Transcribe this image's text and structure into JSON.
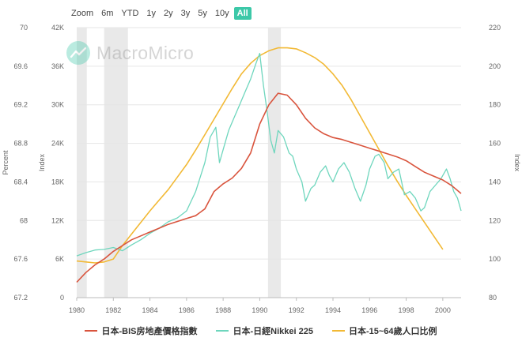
{
  "toolbar": {
    "zoom_label": "Zoom",
    "buttons": [
      "6m",
      "YTD",
      "1y",
      "2y",
      "3y",
      "5y",
      "10y",
      "All"
    ],
    "active": "All"
  },
  "watermark": {
    "text": "MacroMicro",
    "logo_color": "#3cc8a8"
  },
  "chart_data": {
    "type": "line",
    "x_range": [
      1980,
      2001
    ],
    "x_ticks": [
      "1980",
      "1982",
      "1984",
      "1986",
      "1988",
      "1990",
      "1992",
      "1994",
      "1996",
      "1998",
      "2000"
    ],
    "axes": {
      "left_outer": {
        "label": "Percent",
        "range": [
          67.2,
          70
        ],
        "ticks": [
          "67.2",
          "67.6",
          "68",
          "68.4",
          "68.8",
          "69.2",
          "69.6",
          "70"
        ]
      },
      "left_inner": {
        "label": "Index",
        "range": [
          0,
          42000
        ],
        "ticks": [
          "0",
          "6K",
          "12K",
          "18K",
          "24K",
          "30K",
          "36K",
          "42K"
        ]
      },
      "right": {
        "label": "Index",
        "range": [
          80,
          220
        ],
        "ticks": [
          "80",
          "100",
          "120",
          "140",
          "160",
          "180",
          "200",
          "220"
        ]
      }
    },
    "recession_bands": [
      [
        1980.0,
        1980.55
      ],
      [
        1981.5,
        1982.8
      ],
      [
        1990.45,
        1991.15
      ]
    ],
    "grid": "horizontal",
    "legend_position": "bottom",
    "series": [
      {
        "name": "日本-BIS房地產價格指數",
        "axis": "right",
        "color": "#d9543d",
        "points": [
          [
            1980.0,
            88
          ],
          [
            1980.5,
            93
          ],
          [
            1981.0,
            97
          ],
          [
            1981.5,
            100
          ],
          [
            1982.0,
            104
          ],
          [
            1982.5,
            107
          ],
          [
            1983.0,
            110
          ],
          [
            1983.5,
            112
          ],
          [
            1984.0,
            114
          ],
          [
            1984.5,
            116
          ],
          [
            1985.0,
            118
          ],
          [
            1985.5,
            119.5
          ],
          [
            1986.0,
            121
          ],
          [
            1986.5,
            122.5
          ],
          [
            1987.0,
            126
          ],
          [
            1987.5,
            135
          ],
          [
            1988.0,
            139
          ],
          [
            1988.5,
            142
          ],
          [
            1989.0,
            147
          ],
          [
            1989.5,
            155
          ],
          [
            1990.0,
            170
          ],
          [
            1990.5,
            180
          ],
          [
            1991.0,
            186
          ],
          [
            1991.5,
            185
          ],
          [
            1992.0,
            180
          ],
          [
            1992.5,
            173
          ],
          [
            1993.0,
            168
          ],
          [
            1993.5,
            165
          ],
          [
            1994.0,
            163
          ],
          [
            1994.5,
            162
          ],
          [
            1995.0,
            160.5
          ],
          [
            1995.5,
            159
          ],
          [
            1996.0,
            157.5
          ],
          [
            1996.5,
            156
          ],
          [
            1997.0,
            154.5
          ],
          [
            1997.5,
            153
          ],
          [
            1998.0,
            151
          ],
          [
            1998.5,
            148
          ],
          [
            1999.0,
            145
          ],
          [
            1999.5,
            143
          ],
          [
            2000.0,
            141
          ],
          [
            2000.5,
            138
          ],
          [
            2001.0,
            134
          ]
        ]
      },
      {
        "name": "日本-日經Nikkei 225",
        "axis": "left_inner",
        "color": "#6ed6bd",
        "points": [
          [
            1980.0,
            6500
          ],
          [
            1980.5,
            7000
          ],
          [
            1981.0,
            7400
          ],
          [
            1981.5,
            7500
          ],
          [
            1982.0,
            7800
          ],
          [
            1982.5,
            7300
          ],
          [
            1983.0,
            8200
          ],
          [
            1983.5,
            9000
          ],
          [
            1984.0,
            10000
          ],
          [
            1984.5,
            10800
          ],
          [
            1985.0,
            11800
          ],
          [
            1985.5,
            12400
          ],
          [
            1986.0,
            13500
          ],
          [
            1986.5,
            16500
          ],
          [
            1987.0,
            21000
          ],
          [
            1987.3,
            25000
          ],
          [
            1987.6,
            26500
          ],
          [
            1987.8,
            21000
          ],
          [
            1988.0,
            23000
          ],
          [
            1988.3,
            26000
          ],
          [
            1988.6,
            28000
          ],
          [
            1988.9,
            30000
          ],
          [
            1989.2,
            32000
          ],
          [
            1989.5,
            34000
          ],
          [
            1989.8,
            36500
          ],
          [
            1990.0,
            38000
          ],
          [
            1990.2,
            33000
          ],
          [
            1990.4,
            29000
          ],
          [
            1990.6,
            24500
          ],
          [
            1990.8,
            22500
          ],
          [
            1991.0,
            26000
          ],
          [
            1991.3,
            25000
          ],
          [
            1991.6,
            22500
          ],
          [
            1991.8,
            22000
          ],
          [
            1992.0,
            20000
          ],
          [
            1992.3,
            18000
          ],
          [
            1992.5,
            15000
          ],
          [
            1992.8,
            17000
          ],
          [
            1993.0,
            17500
          ],
          [
            1993.3,
            19500
          ],
          [
            1993.6,
            20500
          ],
          [
            1993.8,
            19000
          ],
          [
            1994.0,
            18000
          ],
          [
            1994.3,
            20000
          ],
          [
            1994.6,
            21000
          ],
          [
            1994.9,
            19500
          ],
          [
            1995.2,
            17000
          ],
          [
            1995.5,
            15000
          ],
          [
            1995.8,
            17500
          ],
          [
            1996.0,
            20000
          ],
          [
            1996.3,
            22000
          ],
          [
            1996.5,
            22300
          ],
          [
            1996.8,
            21000
          ],
          [
            1997.0,
            18500
          ],
          [
            1997.3,
            19500
          ],
          [
            1997.6,
            20000
          ],
          [
            1997.9,
            16000
          ],
          [
            1998.2,
            16500
          ],
          [
            1998.5,
            15500
          ],
          [
            1998.8,
            13500
          ],
          [
            1999.0,
            14000
          ],
          [
            1999.3,
            16500
          ],
          [
            1999.6,
            17500
          ],
          [
            1999.9,
            18500
          ],
          [
            2000.2,
            20000
          ],
          [
            2000.4,
            18500
          ],
          [
            2000.6,
            16500
          ],
          [
            2000.8,
            15500
          ],
          [
            2001.0,
            13500
          ]
        ]
      },
      {
        "name": "日本-15~64歲人口比例",
        "axis": "left_outer",
        "color": "#f2b935",
        "points": [
          [
            1980.0,
            67.58
          ],
          [
            1980.5,
            67.57
          ],
          [
            1981.0,
            67.56
          ],
          [
            1981.5,
            67.57
          ],
          [
            1982.0,
            67.6
          ],
          [
            1982.5,
            67.74
          ],
          [
            1983.0,
            67.86
          ],
          [
            1983.5,
            67.98
          ],
          [
            1984.0,
            68.1
          ],
          [
            1984.5,
            68.21
          ],
          [
            1985.0,
            68.32
          ],
          [
            1985.5,
            68.45
          ],
          [
            1986.0,
            68.58
          ],
          [
            1986.5,
            68.73
          ],
          [
            1987.0,
            68.89
          ],
          [
            1987.5,
            69.05
          ],
          [
            1988.0,
            69.21
          ],
          [
            1988.5,
            69.37
          ],
          [
            1989.0,
            69.52
          ],
          [
            1989.5,
            69.63
          ],
          [
            1990.0,
            69.71
          ],
          [
            1990.5,
            69.76
          ],
          [
            1991.0,
            69.79
          ],
          [
            1991.5,
            69.79
          ],
          [
            1992.0,
            69.78
          ],
          [
            1992.5,
            69.74
          ],
          [
            1993.0,
            69.69
          ],
          [
            1993.5,
            69.62
          ],
          [
            1994.0,
            69.52
          ],
          [
            1994.5,
            69.4
          ],
          [
            1995.0,
            69.25
          ],
          [
            1995.5,
            69.08
          ],
          [
            1996.0,
            68.91
          ],
          [
            1996.5,
            68.74
          ],
          [
            1997.0,
            68.57
          ],
          [
            1997.5,
            68.41
          ],
          [
            1998.0,
            68.26
          ],
          [
            1998.5,
            68.12
          ],
          [
            1999.0,
            67.98
          ],
          [
            1999.5,
            67.84
          ],
          [
            2000.0,
            67.7
          ]
        ]
      }
    ]
  }
}
